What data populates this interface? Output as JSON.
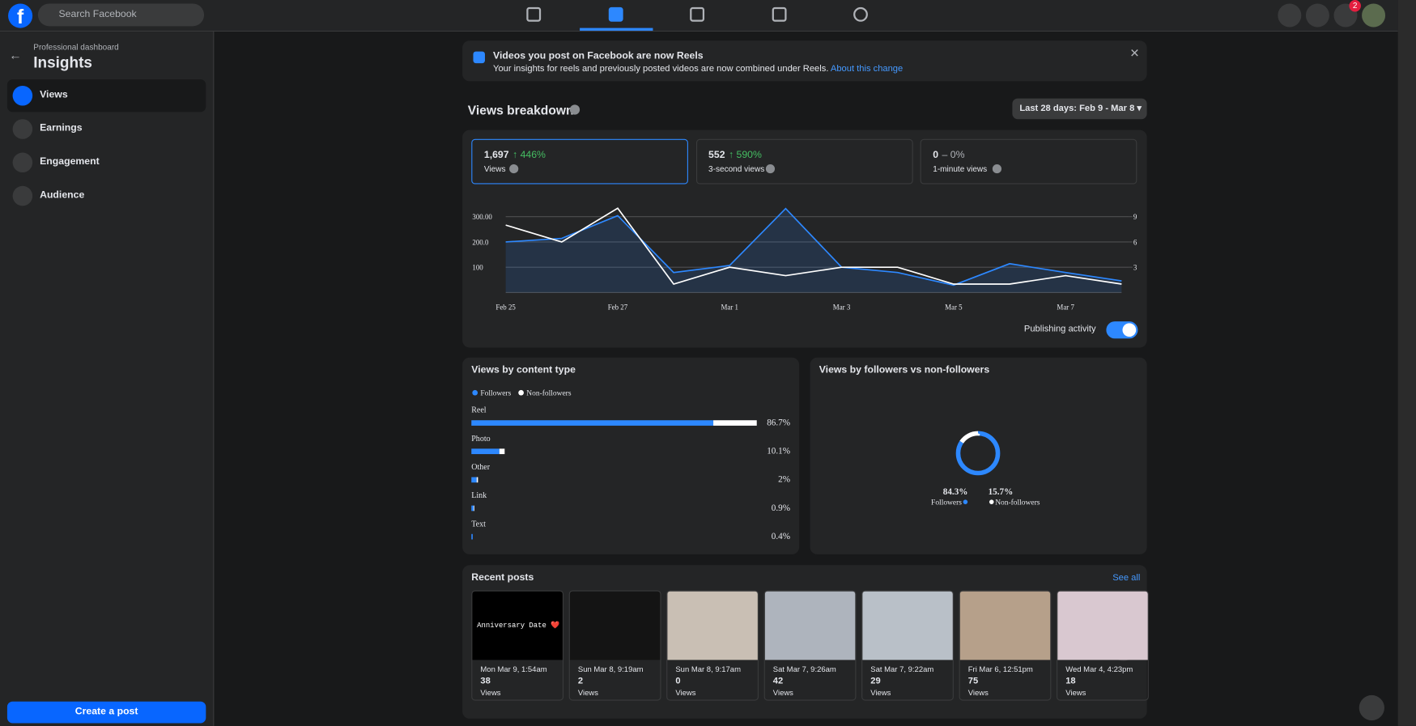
{
  "nav": {
    "search_placeholder": "Search Facebook",
    "notification_count": 2
  },
  "sidebar": {
    "breadcrumb": "Professional dashboard",
    "title": "Insights",
    "items": [
      "Views",
      "Earnings",
      "Engagement",
      "Audience"
    ],
    "create_button": "Create a post"
  },
  "banner": {
    "title": "Videos you post on Facebook are now Reels",
    "text": "Your insights for reels and previously posted videos are now combined under Reels.",
    "link": "About this change"
  },
  "breakdown": {
    "title": "Views breakdown",
    "date_range": "Last 28 days: Feb 9 - Mar 8",
    "cards": [
      {
        "value": "1,697",
        "change": "↑ 446%",
        "label": "Views"
      },
      {
        "value": "552",
        "change": "↑ 590%",
        "label": "3-second views"
      },
      {
        "value": "0",
        "change": "– 0%",
        "label": "1-minute views"
      }
    ],
    "toggle_label": "Publishing activity"
  },
  "chart_data": {
    "type": "line",
    "categories": [
      "Feb 25",
      null,
      "Feb 27",
      null,
      "Mar 1",
      null,
      "Mar 3",
      null,
      "Mar 5",
      null,
      "Mar 7",
      null
    ],
    "series": [
      {
        "color": "#2d88ff",
        "values": [
          200,
          214,
          304,
          79,
          107,
          332,
          100,
          79,
          29,
          114,
          79,
          46
        ]
      },
      {
        "color": "#ffffff",
        "axis": "y2",
        "values": [
          8,
          6,
          10,
          1,
          3,
          2,
          3,
          3,
          1,
          1,
          2,
          1
        ]
      }
    ],
    "ylim": [
      0,
      350
    ],
    "yticks": [
      {
        "value": 100,
        "label": "100"
      },
      {
        "value": 200,
        "label": "200.0"
      },
      {
        "value": 300,
        "label": "300.00"
      }
    ],
    "y2lim": [
      0,
      10.5
    ],
    "y2ticks": [
      3,
      6,
      9
    ],
    "grid": true
  },
  "content_type": {
    "title": "Views by content type",
    "type": "bar",
    "legend": [
      "Followers",
      "Non-followers"
    ],
    "categories": [
      "Reel",
      "Photo",
      "Other",
      "Link",
      "Text"
    ],
    "series": [
      {
        "name": "Followers",
        "color": "#2d88ff",
        "values": [
          73.5,
          8.5,
          1.6,
          0.7,
          0.4
        ]
      },
      {
        "name": "Non-followers",
        "color": "#ffffff",
        "values": [
          13.2,
          1.6,
          0.4,
          0.2,
          0
        ]
      }
    ],
    "total_labels": [
      "86.7%",
      "10.1%",
      "2%",
      "0.9%",
      "0.4%"
    ],
    "xlim": [
      0,
      86.7
    ]
  },
  "followers_split": {
    "title": "Views by followers vs non-followers",
    "type": "pie",
    "categories": [
      "Followers",
      "Non-followers"
    ],
    "values": [
      84.3,
      15.7
    ],
    "value_labels": [
      "84.3%",
      "15.7%"
    ],
    "colors": [
      "#2d88ff",
      "#ffffff"
    ]
  },
  "recent_posts": {
    "title": "Recent posts",
    "see_all": "See all",
    "views_label": "Views",
    "posts": [
      {
        "date": "Mon Mar 9, 1:54am",
        "views": 38,
        "caption": "Anniversary Date ❤️"
      },
      {
        "date": "Sun Mar 8, 9:19am",
        "views": 2
      },
      {
        "date": "Sun Mar 8, 9:17am",
        "views": 0
      },
      {
        "date": "Sat Mar 7, 9:26am",
        "views": 42
      },
      {
        "date": "Sat Mar 7, 9:22am",
        "views": 29
      },
      {
        "date": "Fri Mar 6, 12:51pm",
        "views": 75
      },
      {
        "date": "Wed Mar 4, 4:23pm",
        "views": 18
      }
    ]
  }
}
